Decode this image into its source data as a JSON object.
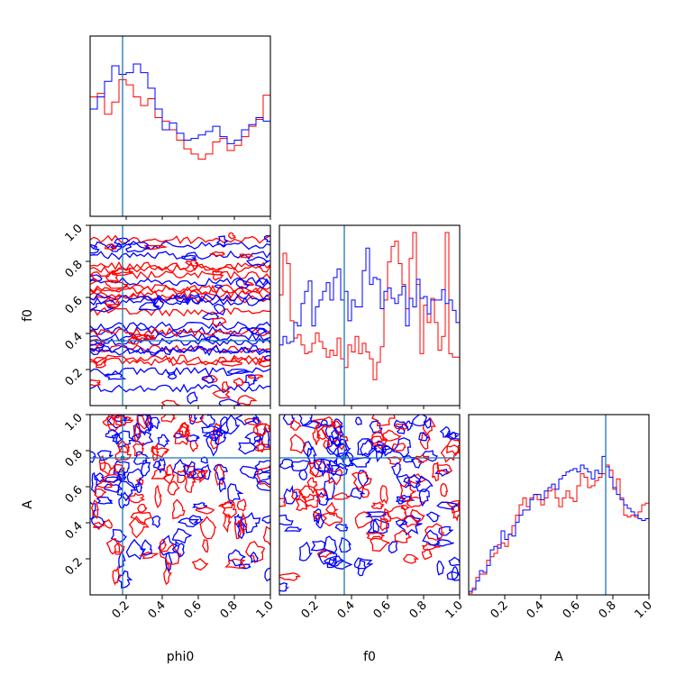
{
  "chart_data": {
    "type": "corner",
    "parameters": [
      "phi0",
      "f0",
      "A"
    ],
    "axis_labels": {
      "phi0": "phi0",
      "f0": "f0",
      "A": "A"
    },
    "range": [
      0.0,
      1.0
    ],
    "ticks": [
      0.2,
      0.4,
      0.6,
      0.8,
      1.0
    ],
    "tick_labels": [
      "0.2",
      "0.4",
      "0.6",
      "0.8",
      "1.0"
    ],
    "truths": {
      "phi0": 0.18,
      "f0": 0.36,
      "A": 0.76
    },
    "colors": {
      "series_a": "#ff0000",
      "series_b": "#0000ff",
      "truth": "#1f77b4"
    },
    "histograms": {
      "phi0": {
        "bins": 50,
        "red": [
          0.69,
          0.69,
          0.71,
          0.71,
          0.59,
          0.59,
          0.66,
          0.66,
          0.79,
          0.79,
          0.76,
          0.76,
          0.69,
          0.69,
          0.64,
          0.64,
          0.68,
          0.68,
          0.57,
          0.57,
          0.55,
          0.55,
          0.5,
          0.5,
          0.44,
          0.44,
          0.39,
          0.39,
          0.36,
          0.36,
          0.33,
          0.33,
          0.36,
          0.36,
          0.43,
          0.43,
          0.45,
          0.45,
          0.38,
          0.38,
          0.41,
          0.41,
          0.46,
          0.46,
          0.52,
          0.52,
          0.56,
          0.56,
          0.7,
          0.7
        ],
        "blue": [
          0.62,
          0.62,
          0.69,
          0.69,
          0.78,
          0.78,
          0.87,
          0.87,
          0.82,
          0.82,
          0.83,
          0.83,
          0.88,
          0.88,
          0.83,
          0.83,
          0.74,
          0.74,
          0.62,
          0.62,
          0.5,
          0.5,
          0.54,
          0.54,
          0.48,
          0.48,
          0.44,
          0.44,
          0.45,
          0.45,
          0.47,
          0.47,
          0.49,
          0.49,
          0.52,
          0.52,
          0.46,
          0.46,
          0.42,
          0.42,
          0.44,
          0.44,
          0.5,
          0.5,
          0.53,
          0.53,
          0.57,
          0.57,
          0.55,
          0.55
        ]
      },
      "f0": {
        "bins": 50,
        "red": [
          0.64,
          0.88,
          0.82,
          0.49,
          0.39,
          0.41,
          0.35,
          0.3,
          0.31,
          0.36,
          0.42,
          0.37,
          0.33,
          0.28,
          0.32,
          0.29,
          0.39,
          0.27,
          0.22,
          0.35,
          0.31,
          0.4,
          0.3,
          0.36,
          0.31,
          0.27,
          0.15,
          0.25,
          0.34,
          0.61,
          0.83,
          0.92,
          0.95,
          0.82,
          0.7,
          0.56,
          0.85,
          1.0,
          0.7,
          0.3,
          0.58,
          0.48,
          0.62,
          0.48,
          0.32,
          0.4,
          1.0,
          0.3,
          0.28,
          0.28
        ],
        "blue": [
          0.35,
          0.4,
          0.36,
          0.37,
          0.48,
          0.46,
          0.59,
          0.66,
          0.72,
          0.46,
          0.57,
          0.61,
          0.66,
          0.71,
          0.61,
          0.74,
          0.79,
          0.61,
          0.66,
          0.49,
          0.61,
          0.57,
          0.57,
          0.78,
          0.91,
          0.7,
          0.74,
          0.73,
          0.56,
          0.66,
          0.68,
          0.62,
          0.59,
          0.64,
          0.69,
          0.46,
          0.62,
          0.57,
          0.73,
          0.62,
          0.63,
          0.53,
          0.61,
          0.61,
          0.61,
          0.67,
          0.59,
          0.61,
          0.55,
          0.48
        ]
      },
      "A": {
        "bins": 50,
        "red": [
          0.01,
          0.04,
          0.1,
          0.12,
          0.12,
          0.2,
          0.22,
          0.24,
          0.29,
          0.3,
          0.28,
          0.35,
          0.4,
          0.46,
          0.52,
          0.56,
          0.51,
          0.56,
          0.58,
          0.55,
          0.52,
          0.56,
          0.6,
          0.61,
          0.56,
          0.51,
          0.56,
          0.6,
          0.56,
          0.54,
          0.63,
          0.7,
          0.68,
          0.62,
          0.63,
          0.66,
          0.68,
          0.7,
          0.75,
          0.72,
          0.61,
          0.67,
          0.56,
          0.46,
          0.45,
          0.46,
          0.45,
          0.48,
          0.52,
          0.53
        ],
        "blue": [
          0.02,
          0.03,
          0.08,
          0.14,
          0.13,
          0.17,
          0.26,
          0.28,
          0.27,
          0.37,
          0.32,
          0.35,
          0.34,
          0.42,
          0.46,
          0.49,
          0.49,
          0.55,
          0.58,
          0.58,
          0.55,
          0.6,
          0.62,
          0.64,
          0.61,
          0.67,
          0.69,
          0.71,
          0.72,
          0.73,
          0.71,
          0.75,
          0.73,
          0.71,
          0.67,
          0.72,
          0.7,
          0.8,
          0.74,
          0.68,
          0.62,
          0.58,
          0.55,
          0.52,
          0.5,
          0.48,
          0.46,
          0.44,
          0.43,
          0.44
        ]
      }
    },
    "contour_panels": [
      {
        "x": "phi0",
        "y": "f0",
        "colors": [
          "red",
          "blue"
        ],
        "style": "noisy-2d-contours"
      },
      {
        "x": "phi0",
        "y": "A",
        "colors": [
          "red",
          "blue"
        ],
        "style": "noisy-2d-contours"
      },
      {
        "x": "f0",
        "y": "A",
        "colors": [
          "red",
          "blue"
        ],
        "style": "noisy-2d-contours"
      }
    ]
  }
}
